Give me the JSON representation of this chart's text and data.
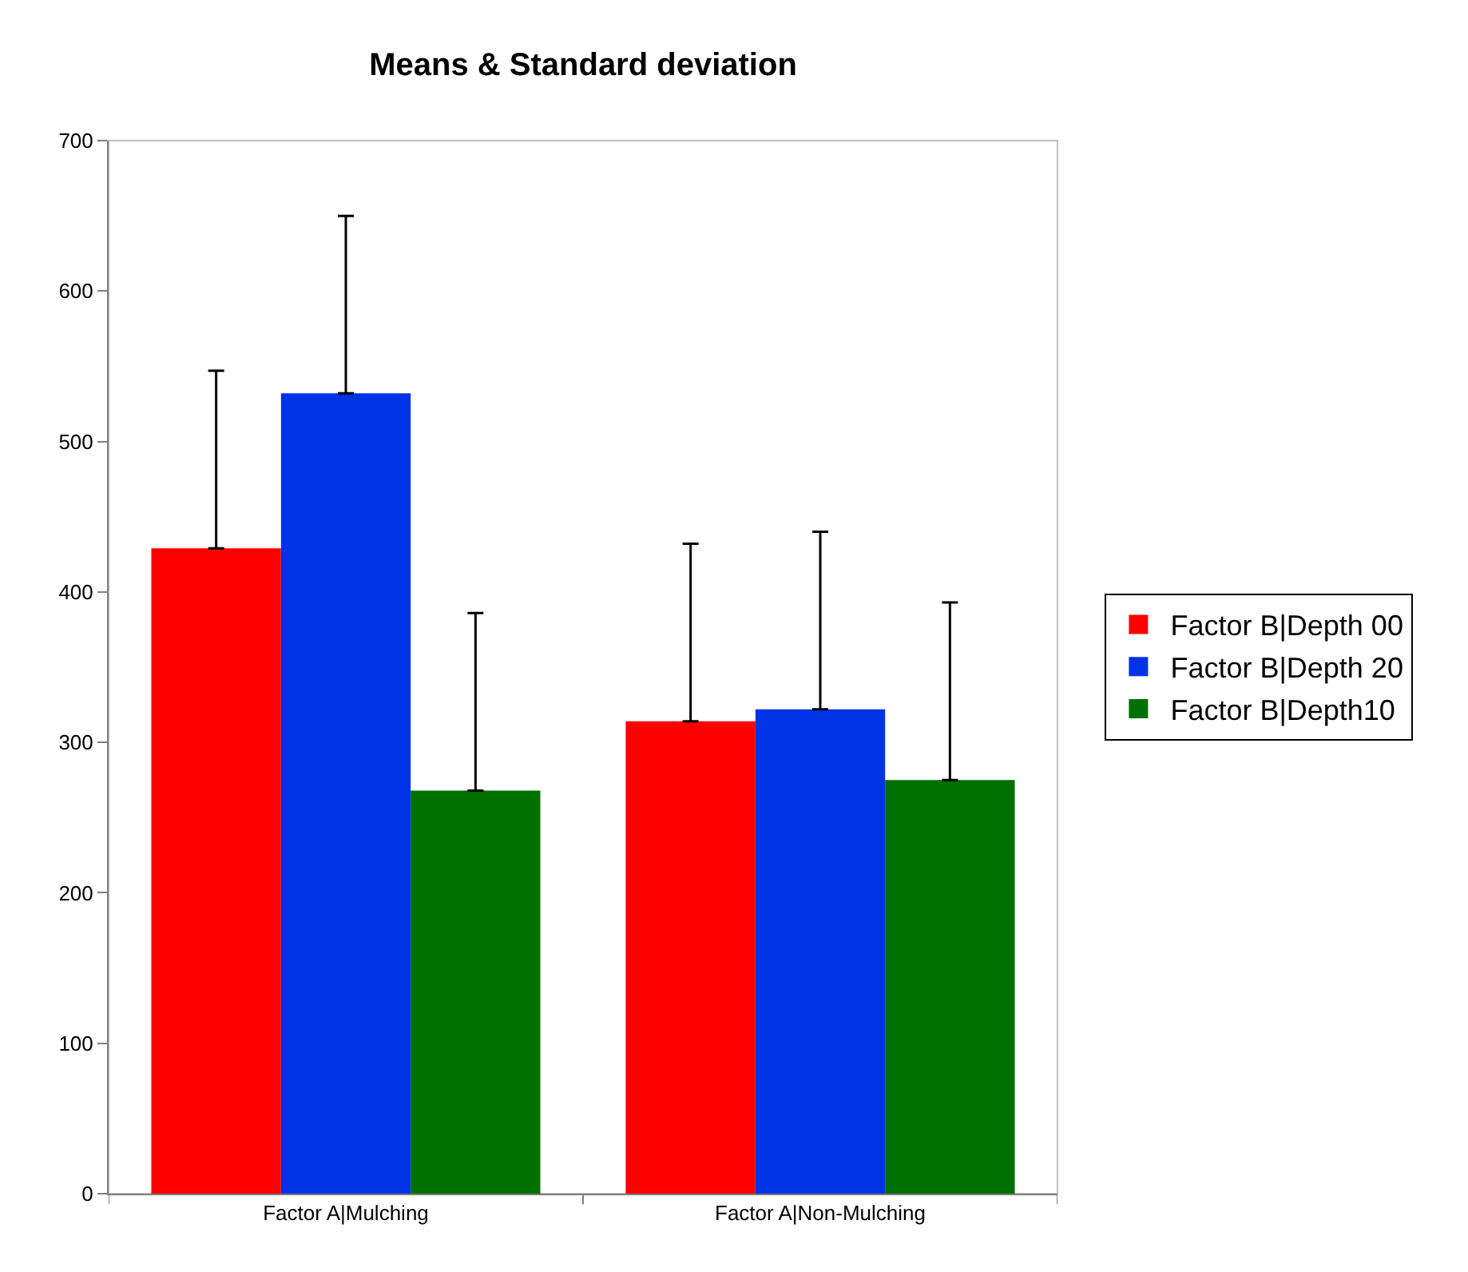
{
  "chart_data": {
    "type": "bar",
    "title": "Means & Standard deviation",
    "categories": [
      "Factor A|Mulching",
      "Factor A|Non-Mulching"
    ],
    "series": [
      {
        "name": "Factor B|Depth 00",
        "color": "#ff0000",
        "values": [
          429,
          314
        ],
        "errors": [
          [
            429,
            547
          ],
          [
            314,
            432
          ]
        ]
      },
      {
        "name": "Factor B|Depth 20",
        "color": "#0033e6",
        "values": [
          532,
          322
        ],
        "errors": [
          [
            532,
            650
          ],
          [
            322,
            440
          ]
        ]
      },
      {
        "name": "Factor B|Depth10",
        "color": "#007000",
        "values": [
          268,
          275
        ],
        "errors": [
          [
            268,
            386
          ],
          [
            275,
            393
          ]
        ]
      }
    ],
    "ylim": [
      0,
      700
    ],
    "yticks": [
      0,
      100,
      200,
      300,
      400,
      500,
      600,
      700
    ],
    "grid": false,
    "legend": "right"
  }
}
